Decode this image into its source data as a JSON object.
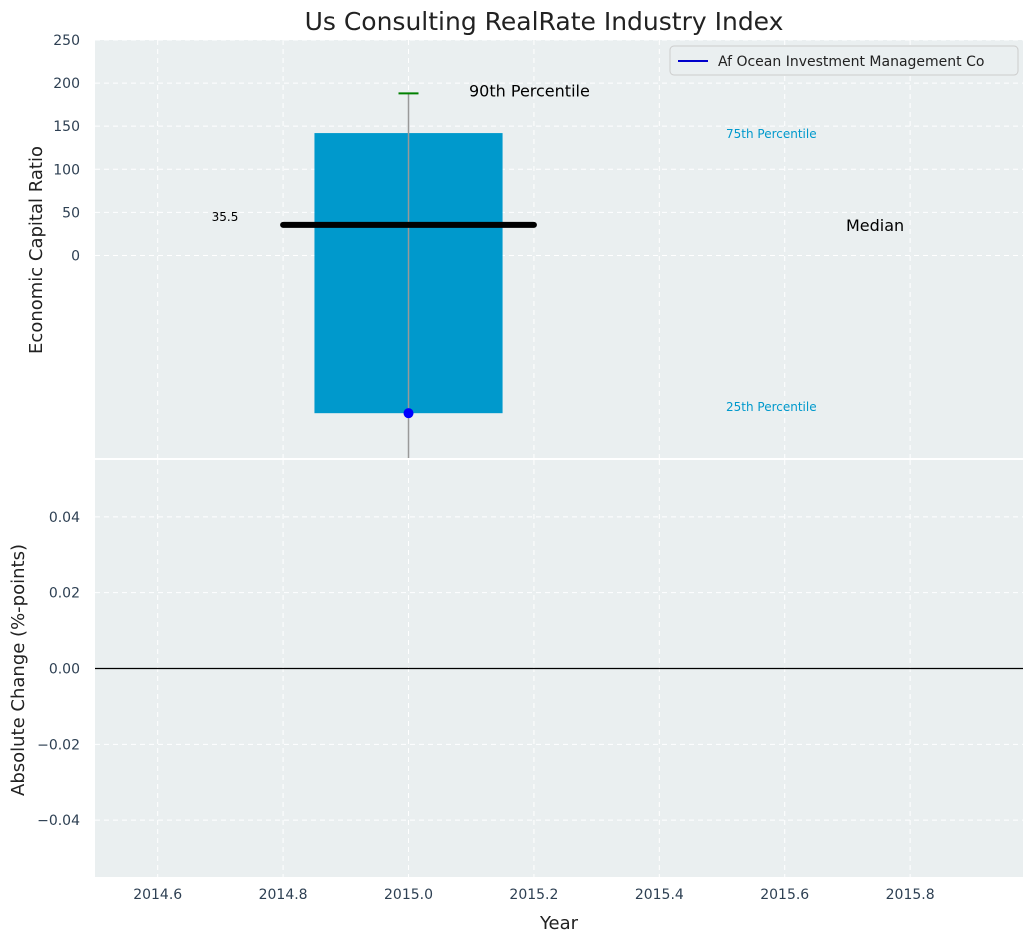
{
  "chart_data": {
    "title": "Us Consulting RealRate Industry Index",
    "colors": {
      "panel_bg": "#eaeff0",
      "grid": "#ffffff",
      "tick_text": "#2e4053",
      "box_fill": "#0099cc",
      "percentile_label": "#0099cc",
      "median_line": "#000000",
      "whisker": "#999999",
      "p90_cap": "#008000",
      "company_marker": "#0000ff"
    },
    "panels": [
      {
        "id": "top",
        "type": "box",
        "ylabel": "Economic Capital Ratio",
        "xlim": [
          2014.5,
          2015.98
        ],
        "ylim": [
          -235,
          250
        ],
        "yticks": [
          0,
          50,
          100,
          150,
          200,
          250
        ],
        "box": {
          "x": 2015.0,
          "x_left": 2014.85,
          "x_right": 2015.15,
          "p25": -183,
          "p75": 142,
          "median": 35.5,
          "median_x_range": [
            2014.8,
            2015.2
          ],
          "p90": 188,
          "whisker_low": -235
        },
        "company": {
          "name": "Af Ocean Investment Management Co",
          "x": 2015.0,
          "y": -183
        },
        "median_value_label": "35.5",
        "labels": {
          "p90": "90th Percentile",
          "p75": "75th Percentile",
          "median": "Median",
          "p25": "25th Percentile"
        },
        "legend": {
          "position": "top-right",
          "entries": [
            "Af Ocean Investment Management Co"
          ]
        }
      },
      {
        "id": "bottom",
        "type": "line",
        "ylabel": "Absolute Change (%-points)",
        "xlabel": "Year",
        "xlim": [
          2014.5,
          2015.98
        ],
        "ylim": [
          -0.055,
          0.055
        ],
        "yticks": [
          -0.04,
          -0.02,
          0.0,
          0.02,
          0.04
        ],
        "ytick_labels": [
          "−0.04",
          "−0.02",
          "0.00",
          "0.02",
          "0.04"
        ],
        "xticks": [
          2014.6,
          2014.8,
          2015.0,
          2015.2,
          2015.4,
          2015.6,
          2015.8
        ],
        "xtick_labels": [
          "2014.6",
          "2014.8",
          "2015.0",
          "2015.2",
          "2015.4",
          "2015.6",
          "2015.8"
        ],
        "reference_line": 0.0
      }
    ]
  }
}
